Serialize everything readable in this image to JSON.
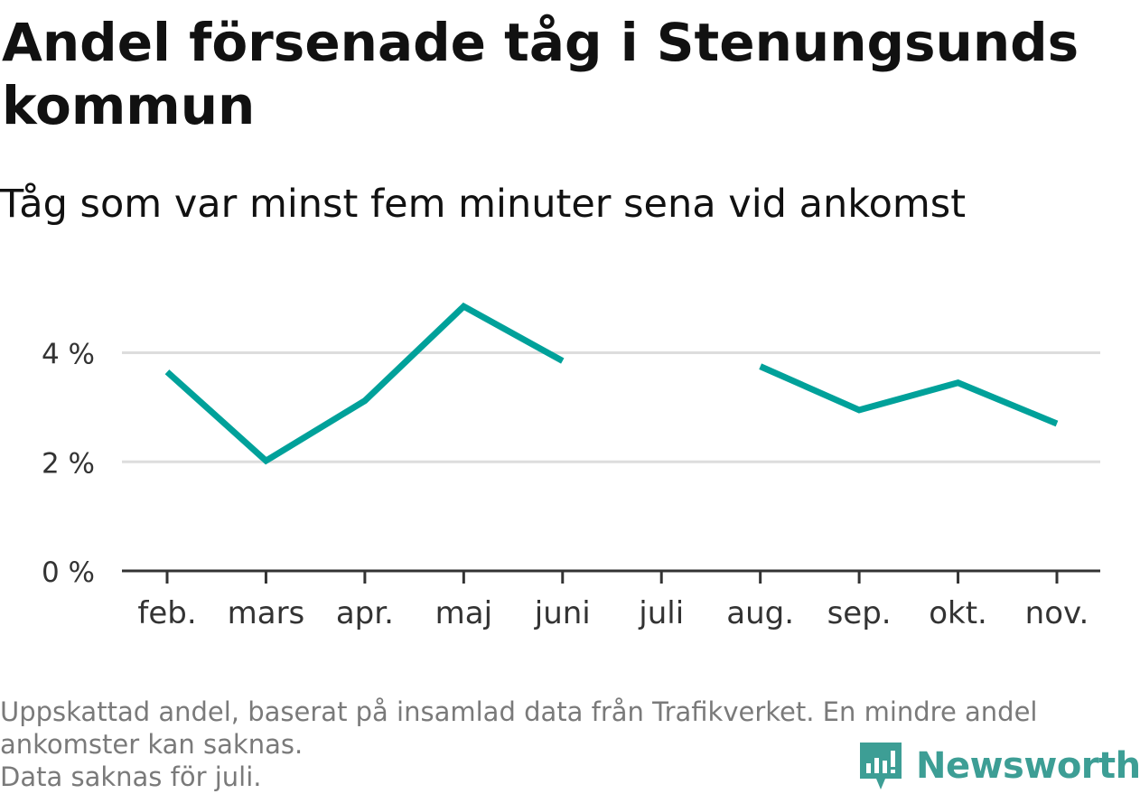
{
  "header": {
    "title": "Andel försenade tåg i Stenungsunds kommun",
    "subtitle": "Tåg som var minst fem minuter sena vid ankomst"
  },
  "footer": {
    "note_line_1": "Uppskattad andel, baserat på insamlad data från Trafikverket. En mindre andel",
    "note_line_2": "ankomster kan saknas.",
    "note_line_3": "Data saknas för juli.",
    "brand_name": "Newsworthy",
    "brand_icon": "newsworthy-logo-icon"
  },
  "colors": {
    "line": "#00a19a",
    "grid": "#dddddd",
    "axis": "#333333",
    "brand": "#3d9e95"
  },
  "chart_data": {
    "type": "line",
    "title": "Andel försenade tåg i Stenungsunds kommun",
    "subtitle": "Tåg som var minst fem minuter sena vid ankomst",
    "categories": [
      "feb.",
      "mars",
      "apr.",
      "maj",
      "juni",
      "juli",
      "aug.",
      "sep.",
      "okt.",
      "nov."
    ],
    "series": [
      {
        "values": [
          3.65,
          2.02,
          3.12,
          4.85,
          3.85,
          null,
          3.75,
          2.95,
          3.45,
          2.7
        ]
      }
    ],
    "ylim": [
      0,
      5.5
    ],
    "yticks": [
      0,
      2,
      4
    ],
    "ytick_labels": [
      "0 %",
      "2 %",
      "4 %"
    ],
    "xlabel": "",
    "ylabel": "",
    "grid": true,
    "legend": "none"
  }
}
